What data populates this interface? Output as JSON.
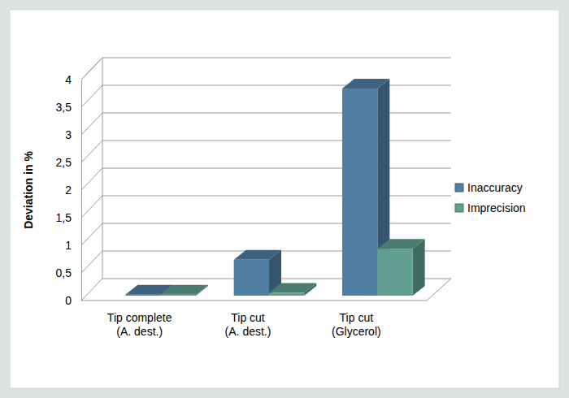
{
  "chart_data": {
    "type": "bar",
    "y_label": "Deviation in %",
    "categories": [
      "Tip complete\n(A. dest.)",
      "Tip cut\n(A. dest.)",
      "Tip cut\n(Glycerol)"
    ],
    "series": [
      {
        "name": "Inaccuracy",
        "color": "#4f7fa3",
        "values": [
          0.02,
          0.65,
          3.75
        ]
      },
      {
        "name": "Imprecision",
        "color": "#5f9e91",
        "values": [
          0.02,
          0.05,
          0.85
        ]
      }
    ],
    "ylim": [
      0,
      4
    ],
    "yticks": [
      0,
      {
        "value": 0.5,
        "label": "0,5"
      },
      1,
      {
        "value": 1.5,
        "label": "1,5"
      },
      2,
      {
        "value": 2.5,
        "label": "2,5"
      },
      3,
      {
        "value": 3.5,
        "label": "3,5"
      },
      4
    ],
    "grid": true,
    "legend": "right"
  }
}
